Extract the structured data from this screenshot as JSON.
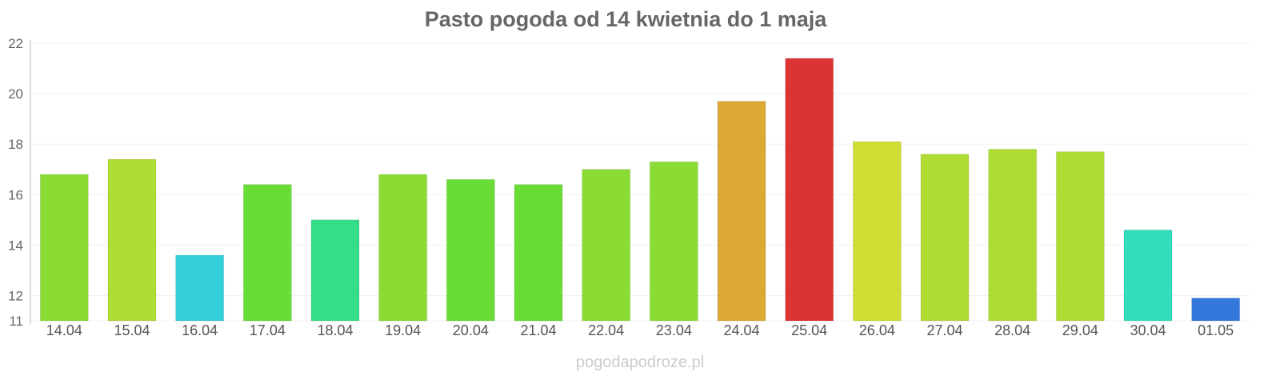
{
  "chart_data": {
    "type": "bar",
    "title": "Pasto pogoda od 14 kwietnia do 1 maja",
    "xlabel": "",
    "ylabel": "",
    "ylim": [
      11,
      22
    ],
    "yticks": [
      11,
      12,
      14,
      16,
      18,
      20,
      22
    ],
    "grid": true,
    "categories": [
      "14.04",
      "15.04",
      "16.04",
      "17.04",
      "18.04",
      "19.04",
      "20.04",
      "21.04",
      "22.04",
      "23.04",
      "24.04",
      "25.04",
      "26.04",
      "27.04",
      "28.04",
      "29.04",
      "30.04",
      "01.05"
    ],
    "values": [
      16.8,
      17.4,
      13.6,
      16.4,
      15.0,
      16.8,
      16.6,
      16.4,
      17.0,
      17.3,
      19.7,
      21.4,
      18.1,
      17.6,
      17.8,
      17.7,
      14.6,
      11.9
    ],
    "colors": [
      "#8adb33",
      "#afdc33",
      "#34cfd9",
      "#69dc36",
      "#34dd87",
      "#8adb33",
      "#69dc36",
      "#69dc36",
      "#8adb33",
      "#8adb33",
      "#dba934",
      "#dc3434",
      "#cfdd34",
      "#afdc33",
      "#afdc33",
      "#afdc33",
      "#34ddbb",
      "#3478dc"
    ],
    "watermark": "pogodapodroze.pl"
  }
}
